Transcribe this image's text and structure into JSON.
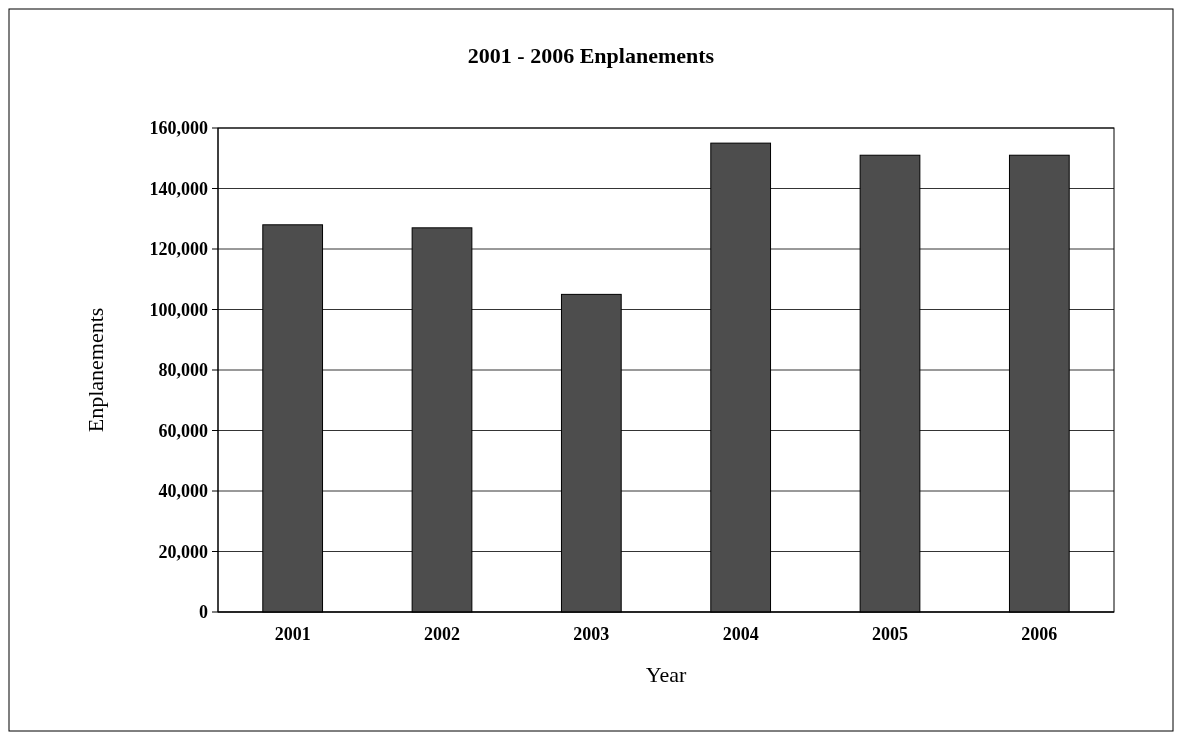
{
  "chart_data": {
    "type": "bar",
    "title": "2001 - 2006 Enplanements",
    "xlabel": "Year",
    "ylabel": "Enplanements",
    "categories": [
      "2001",
      "2002",
      "2003",
      "2004",
      "2005",
      "2006"
    ],
    "values": [
      128000,
      127000,
      105000,
      155000,
      151000,
      151000
    ],
    "color": "#4d4d4d",
    "ylim": [
      0,
      160000
    ],
    "yticks": [
      {
        "value": 0,
        "label": "0"
      },
      {
        "value": 20000,
        "label": "20,000"
      },
      {
        "value": 40000,
        "label": "40,000"
      },
      {
        "value": 60000,
        "label": "60,000"
      },
      {
        "value": 80000,
        "label": "80,000"
      },
      {
        "value": 100000,
        "label": "100,000"
      },
      {
        "value": 120000,
        "label": "120,000"
      },
      {
        "value": 140000,
        "label": "140,000"
      },
      {
        "value": 160000,
        "label": "160,000"
      }
    ],
    "grid": "y"
  }
}
